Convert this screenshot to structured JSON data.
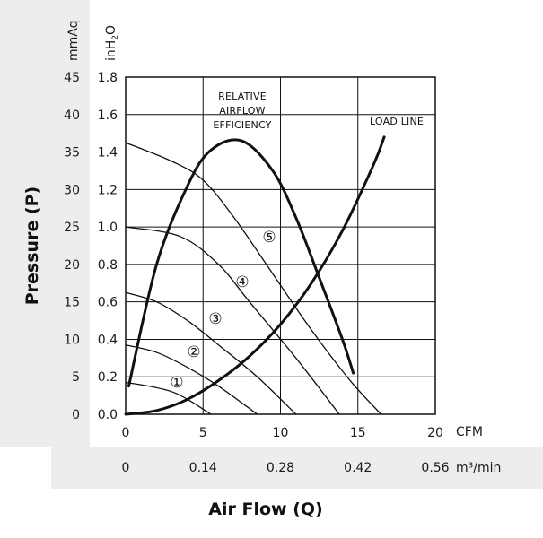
{
  "chart_data": {
    "type": "line",
    "title": "",
    "xlabel": "Air Flow (Q)",
    "ylabel": "Pressure (P)",
    "x_units": {
      "primary": "CFM",
      "secondary": "m³/min"
    },
    "y_units": {
      "primary": "inH2O",
      "secondary": "mmAq"
    },
    "xlim": [
      0,
      20
    ],
    "ylim": [
      0,
      1.8
    ],
    "grid": true,
    "x_ticks_cfm": [
      "0",
      "5",
      "10",
      "15",
      "20"
    ],
    "x_ticks_m3": [
      "0",
      "0.14",
      "0.28",
      "0.42",
      "0.56"
    ],
    "y_ticks_inh2o": [
      "0.0",
      "0.2",
      "0.4",
      "0.6",
      "0.8",
      "1.0",
      "1.2",
      "1.4",
      "1.6",
      "1.8"
    ],
    "y_ticks_mmaq": [
      "0",
      "5",
      "10",
      "15",
      "20",
      "25",
      "30",
      "35",
      "40",
      "45"
    ],
    "series": [
      {
        "name": "1",
        "label": "①",
        "x": [
          0,
          1.5,
          3.0,
          4.2,
          5.5
        ],
        "y": [
          0.17,
          0.15,
          0.12,
          0.07,
          0.0
        ]
      },
      {
        "name": "2",
        "label": "②",
        "x": [
          0,
          2.0,
          4.0,
          6.0,
          8.5
        ],
        "y": [
          0.37,
          0.33,
          0.25,
          0.15,
          0.0
        ]
      },
      {
        "name": "3",
        "label": "③",
        "x": [
          0,
          2.0,
          4.0,
          6.0,
          8.5,
          11.0
        ],
        "y": [
          0.65,
          0.6,
          0.5,
          0.37,
          0.2,
          0.0
        ]
      },
      {
        "name": "4",
        "label": "④",
        "x": [
          0,
          3.5,
          6.0,
          8.0,
          11.0,
          13.8
        ],
        "y": [
          1.0,
          0.95,
          0.8,
          0.6,
          0.3,
          0.0
        ]
      },
      {
        "name": "5",
        "label": "⑤",
        "x": [
          0,
          3.0,
          5.0,
          7.0,
          9.5,
          12.0,
          14.5,
          16.5
        ],
        "y": [
          1.45,
          1.35,
          1.25,
          1.05,
          0.75,
          0.45,
          0.18,
          0.0
        ]
      },
      {
        "name": "Relative Airflow Efficiency",
        "label": "RELATIVE AIRFLOW EFFICIENCY",
        "x": [
          0.2,
          2.0,
          4.0,
          5.5,
          7.5,
          9.5,
          11.0,
          12.5,
          14.0,
          14.7
        ],
        "y": [
          0.15,
          0.8,
          1.22,
          1.41,
          1.46,
          1.3,
          1.05,
          0.73,
          0.4,
          0.22
        ]
      },
      {
        "name": "Load Line",
        "label": "LOAD LINE",
        "x": [
          0,
          2.0,
          4.0,
          6.0,
          8.0,
          10.0,
          12.0,
          14.0,
          16.0,
          16.7
        ],
        "y": [
          0.0,
          0.02,
          0.08,
          0.18,
          0.31,
          0.48,
          0.7,
          0.98,
          1.33,
          1.48
        ]
      }
    ],
    "annotations": {
      "efficiency": [
        "RELATIVE",
        "AIRFLOW",
        "EFFICIENCY"
      ],
      "load_line": "LOAD LINE"
    }
  }
}
